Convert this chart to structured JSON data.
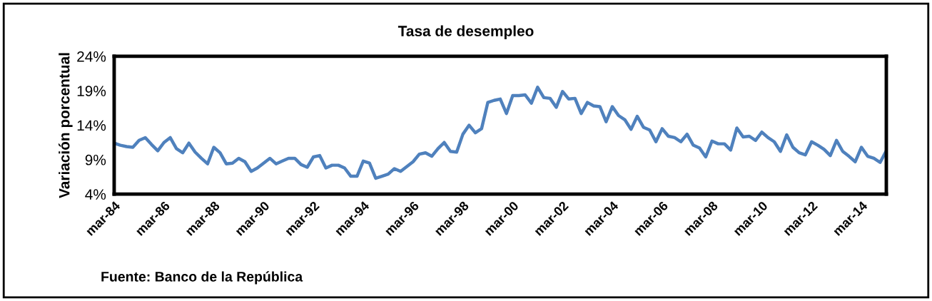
{
  "chart_data": {
    "type": "line",
    "title": "Tasa de desempleo",
    "ylabel": "Variación porcentual",
    "annotations": [
      "Fuente: Banco de la República"
    ],
    "categories": [
      "mar-84",
      null,
      null,
      null,
      null,
      null,
      null,
      null,
      "mar-86",
      null,
      null,
      null,
      null,
      null,
      null,
      null,
      "mar-88",
      null,
      null,
      null,
      null,
      null,
      null,
      null,
      "mar-90",
      null,
      null,
      null,
      null,
      null,
      null,
      null,
      "mar-92",
      null,
      null,
      null,
      null,
      null,
      null,
      null,
      "mar-94",
      null,
      null,
      null,
      null,
      null,
      null,
      null,
      "mar-96",
      null,
      null,
      null,
      null,
      null,
      null,
      null,
      "mar-98",
      null,
      null,
      null,
      null,
      null,
      null,
      null,
      "mar-00",
      null,
      null,
      null,
      null,
      null,
      null,
      null,
      "mar-02",
      null,
      null,
      null,
      null,
      null,
      null,
      null,
      "mar-04",
      null,
      null,
      null,
      null,
      null,
      null,
      null,
      "mar-06",
      null,
      null,
      null,
      null,
      null,
      null,
      null,
      "mar-08",
      null,
      null,
      null,
      null,
      null,
      null,
      null,
      "mar-10",
      null,
      null,
      null,
      null,
      null,
      null,
      null,
      "mar-12",
      null,
      null,
      null,
      null,
      null,
      null,
      null,
      "mar-14",
      null,
      null,
      null,
      null
    ],
    "series": [
      {
        "color": "#4f81bd",
        "values": [
          11.4,
          11.1,
          10.9,
          10.8,
          11.8,
          12.2,
          11.2,
          10.3,
          11.5,
          12.2,
          10.6,
          10.0,
          11.4,
          10.1,
          9.2,
          8.4,
          10.8,
          10.0,
          8.4,
          8.5,
          9.2,
          8.7,
          7.3,
          7.8,
          8.5,
          9.2,
          8.4,
          8.8,
          9.2,
          9.2,
          8.3,
          7.9,
          9.4,
          9.6,
          7.8,
          8.2,
          8.2,
          7.8,
          6.6,
          6.6,
          8.8,
          8.5,
          6.3,
          6.6,
          6.9,
          7.7,
          7.3,
          8.0,
          8.7,
          9.8,
          10.0,
          9.5,
          10.6,
          11.5,
          10.2,
          10.1,
          12.7,
          14.0,
          12.9,
          13.5,
          17.3,
          17.6,
          17.8,
          15.7,
          18.3,
          18.3,
          18.4,
          17.2,
          19.5,
          18.0,
          17.9,
          16.6,
          18.9,
          17.8,
          17.9,
          15.7,
          17.3,
          16.8,
          16.7,
          14.5,
          16.7,
          15.4,
          14.8,
          13.4,
          15.3,
          13.7,
          13.3,
          11.6,
          13.5,
          12.4,
          12.2,
          11.6,
          12.7,
          11.1,
          10.7,
          9.4,
          11.7,
          11.3,
          11.3,
          10.4,
          13.6,
          12.3,
          12.4,
          11.8,
          13.0,
          12.2,
          11.6,
          10.2,
          12.6,
          10.8,
          10.0,
          9.7,
          11.6,
          11.1,
          10.5,
          9.6,
          11.8,
          10.2,
          9.5,
          8.7,
          10.8,
          9.5,
          9.2,
          8.6,
          10.3
        ]
      }
    ],
    "ylim": [
      4,
      24
    ],
    "yticks": [
      {
        "value": 4,
        "label": "4%"
      },
      {
        "value": 9,
        "label": "9%"
      },
      {
        "value": 14,
        "label": "14%"
      },
      {
        "value": 19,
        "label": "19%"
      },
      {
        "value": 24,
        "label": "24%"
      }
    ],
    "grid": false,
    "marker": "none",
    "line_style": "solid"
  }
}
